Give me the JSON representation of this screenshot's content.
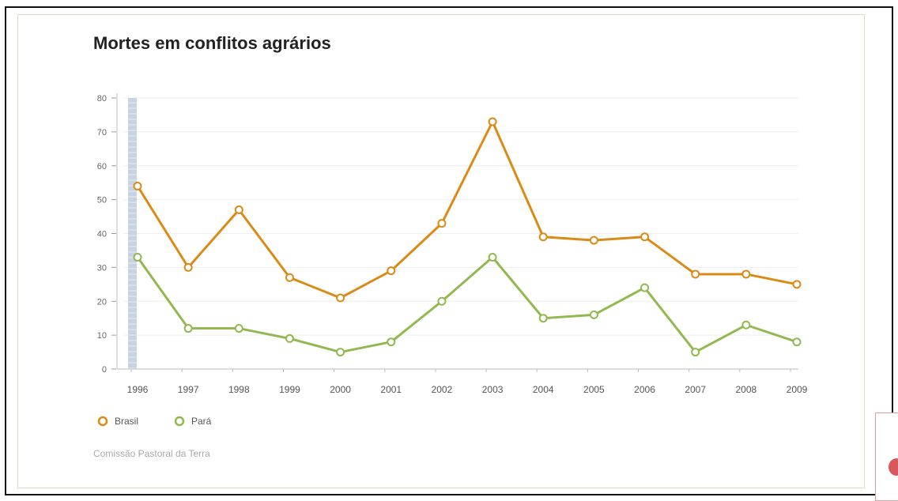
{
  "chart_data": {
    "type": "line",
    "title": "Mortes em conflitos agrários",
    "xlabel": "",
    "ylabel": "",
    "ylim": [
      0,
      80
    ],
    "yticks": [
      0,
      10,
      20,
      30,
      40,
      50,
      60,
      70,
      80
    ],
    "categories": [
      "1996",
      "1997",
      "1998",
      "1999",
      "2000",
      "2001",
      "2002",
      "2003",
      "2004",
      "2005",
      "2006",
      "2007",
      "2008",
      "2009"
    ],
    "series": [
      {
        "name": "Brasil",
        "color": "#d98b16",
        "values": [
          54,
          30,
          47,
          27,
          21,
          29,
          43,
          73,
          39,
          38,
          39,
          28,
          28,
          25
        ]
      },
      {
        "name": "Pará",
        "color": "#93b850",
        "values": [
          33,
          12,
          12,
          9,
          5,
          8,
          20,
          33,
          15,
          16,
          24,
          5,
          13,
          8
        ]
      }
    ],
    "highlight_category": "1996",
    "grid": true,
    "legend": "bottom-left"
  },
  "source": "Comissão Pastoral da Terra"
}
